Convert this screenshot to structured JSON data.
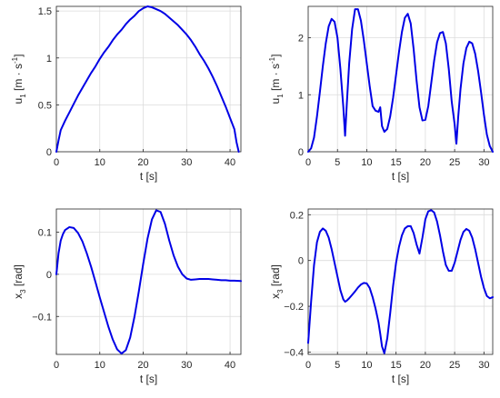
{
  "chart_data": [
    {
      "type": "line",
      "xlabel": "t [s]",
      "ylabel": {
        "main": "u",
        "sub": "1",
        "unit": " [m · s",
        "sup": "-1",
        "close": "]"
      },
      "xlim": [
        0,
        42.5
      ],
      "ylim": [
        0,
        1.55
      ],
      "xticks": [
        0,
        10,
        20,
        30,
        40
      ],
      "yticks": [
        0,
        0.5,
        1,
        1.5
      ],
      "xtick_labels": [
        "0",
        "10",
        "20",
        "30",
        "40"
      ],
      "ytick_labels": [
        "0",
        "0.5",
        "1",
        "1.5"
      ],
      "grid": true,
      "color": "#0000e6",
      "x": [
        0,
        0.5,
        1,
        2,
        3,
        4,
        5,
        6,
        7,
        8,
        9,
        10,
        11,
        12,
        13,
        14,
        15,
        16,
        17,
        18,
        19,
        20,
        21,
        22,
        23,
        24,
        25,
        26,
        27,
        28,
        29,
        30,
        31,
        32,
        33,
        34,
        35,
        36,
        37,
        38,
        39,
        40,
        41,
        41.5,
        42
      ],
      "y": [
        0.0,
        0.12,
        0.23,
        0.33,
        0.42,
        0.51,
        0.6,
        0.68,
        0.76,
        0.84,
        0.91,
        0.99,
        1.06,
        1.12,
        1.19,
        1.25,
        1.3,
        1.36,
        1.41,
        1.45,
        1.5,
        1.53,
        1.55,
        1.54,
        1.52,
        1.5,
        1.47,
        1.43,
        1.39,
        1.35,
        1.3,
        1.25,
        1.19,
        1.12,
        1.04,
        0.97,
        0.89,
        0.8,
        0.7,
        0.59,
        0.48,
        0.36,
        0.24,
        0.1,
        0.0
      ]
    },
    {
      "type": "line",
      "xlabel": "t [s]",
      "ylabel": {
        "main": "u",
        "sub": "1",
        "unit": " [m · s",
        "sup": "-1",
        "close": "]"
      },
      "xlim": [
        0,
        31.5
      ],
      "ylim": [
        0,
        2.55
      ],
      "xticks": [
        0,
        5,
        10,
        15,
        20,
        25,
        30
      ],
      "yticks": [
        0,
        1,
        2
      ],
      "xtick_labels": [
        "0",
        "5",
        "10",
        "15",
        "20",
        "25",
        "30"
      ],
      "ytick_labels": [
        "0",
        "1",
        "2"
      ],
      "grid": true,
      "color": "#0000e6",
      "x": [
        0,
        0.5,
        1,
        1.5,
        2,
        2.5,
        3,
        3.5,
        4,
        4.5,
        5,
        5.5,
        6,
        6.3,
        6.6,
        7,
        7.5,
        8,
        8.5,
        9,
        9.5,
        10,
        10.5,
        11,
        11.5,
        12,
        12.3,
        12.6,
        13,
        13.5,
        14,
        14.5,
        15,
        15.5,
        16,
        16.5,
        17,
        17.5,
        18,
        18.5,
        19,
        19.5,
        20,
        20.5,
        21,
        21.5,
        22,
        22.5,
        23,
        23.5,
        24,
        24.5,
        25,
        25.3,
        25.6,
        26,
        26.5,
        27,
        27.5,
        28,
        28.5,
        29,
        29.5,
        30,
        30.5,
        31,
        31.5
      ],
      "y": [
        0.0,
        0.06,
        0.25,
        0.62,
        1.05,
        1.5,
        1.9,
        2.2,
        2.33,
        2.28,
        2.0,
        1.45,
        0.78,
        0.28,
        0.85,
        1.55,
        2.15,
        2.5,
        2.5,
        2.3,
        1.95,
        1.55,
        1.15,
        0.8,
        0.72,
        0.7,
        0.78,
        0.45,
        0.35,
        0.4,
        0.62,
        0.95,
        1.35,
        1.75,
        2.1,
        2.35,
        2.42,
        2.25,
        1.8,
        1.25,
        0.78,
        0.55,
        0.56,
        0.8,
        1.2,
        1.6,
        1.92,
        2.08,
        2.1,
        1.9,
        1.45,
        0.88,
        0.48,
        0.14,
        0.6,
        1.1,
        1.55,
        1.82,
        1.93,
        1.9,
        1.72,
        1.42,
        1.05,
        0.65,
        0.3,
        0.1,
        0.0
      ]
    },
    {
      "type": "line",
      "xlabel": "t [s]",
      "ylabel": {
        "main": "x",
        "sub": "3",
        "unit": " [rad]",
        "sup": "",
        "close": ""
      },
      "xlim": [
        0,
        42.5
      ],
      "ylim": [
        -0.19,
        0.155
      ],
      "xticks": [
        0,
        10,
        20,
        30,
        40
      ],
      "yticks": [
        -0.1,
        0,
        0.1
      ],
      "xtick_labels": [
        "0",
        "10",
        "20",
        "30",
        "40"
      ],
      "ytick_labels": [
        "−0.1",
        "0",
        "0.1"
      ],
      "grid": true,
      "color": "#0000e6",
      "x": [
        0,
        0.5,
        1,
        1.5,
        2,
        3,
        4,
        5,
        6,
        7,
        8,
        9,
        10,
        11,
        12,
        13,
        14,
        15,
        16,
        17,
        18,
        19,
        20,
        21,
        22,
        23,
        24,
        25,
        26,
        27,
        28,
        29,
        30,
        31,
        32,
        33,
        34,
        35,
        36,
        37,
        38,
        39,
        40,
        41,
        42.5
      ],
      "y": [
        0.0,
        0.05,
        0.08,
        0.095,
        0.105,
        0.112,
        0.11,
        0.098,
        0.078,
        0.05,
        0.018,
        -0.018,
        -0.055,
        -0.09,
        -0.125,
        -0.155,
        -0.178,
        -0.188,
        -0.18,
        -0.15,
        -0.1,
        -0.04,
        0.025,
        0.085,
        0.13,
        0.152,
        0.148,
        0.12,
        0.08,
        0.045,
        0.018,
        0.0,
        -0.01,
        -0.013,
        -0.012,
        -0.011,
        -0.011,
        -0.011,
        -0.012,
        -0.013,
        -0.014,
        -0.014,
        -0.015,
        -0.015,
        -0.016
      ]
    },
    {
      "type": "line",
      "xlabel": "t [s]",
      "ylabel": {
        "main": "x",
        "sub": "3",
        "unit": " [rad]",
        "sup": "",
        "close": ""
      },
      "xlim": [
        0,
        31.5
      ],
      "ylim": [
        -0.41,
        0.225
      ],
      "xticks": [
        0,
        5,
        10,
        15,
        20,
        25,
        30
      ],
      "yticks": [
        -0.4,
        -0.2,
        0,
        0.2
      ],
      "xtick_labels": [
        "0",
        "5",
        "10",
        "15",
        "20",
        "25",
        "30"
      ],
      "ytick_labels": [
        "−0.4",
        "−0.2",
        "0",
        "0.2"
      ],
      "grid": true,
      "color": "#0000e6",
      "x": [
        0,
        0.5,
        1,
        1.5,
        2,
        2.5,
        3,
        3.5,
        4,
        4.5,
        5,
        5.5,
        6,
        6.3,
        6.6,
        7,
        7.5,
        8,
        8.5,
        9,
        9.5,
        10,
        10.5,
        11,
        11.5,
        12,
        12.3,
        12.6,
        13,
        13.5,
        14,
        14.5,
        15,
        15.5,
        16,
        16.5,
        17,
        17.5,
        18,
        18.5,
        19,
        19.5,
        20,
        20.5,
        21,
        21.5,
        22,
        22.5,
        23,
        23.5,
        24,
        24.5,
        25,
        25.5,
        26,
        26.5,
        27,
        27.5,
        28,
        28.5,
        29,
        29.5,
        30,
        30.5,
        31,
        31.5
      ],
      "y": [
        -0.36,
        -0.18,
        -0.02,
        0.08,
        0.125,
        0.14,
        0.13,
        0.1,
        0.05,
        -0.01,
        -0.07,
        -0.13,
        -0.17,
        -0.18,
        -0.175,
        -0.165,
        -0.15,
        -0.135,
        -0.118,
        -0.105,
        -0.098,
        -0.1,
        -0.12,
        -0.16,
        -0.21,
        -0.27,
        -0.32,
        -0.375,
        -0.405,
        -0.34,
        -0.23,
        -0.11,
        -0.01,
        0.06,
        0.11,
        0.14,
        0.15,
        0.15,
        0.12,
        0.07,
        0.03,
        0.1,
        0.18,
        0.215,
        0.22,
        0.21,
        0.17,
        0.11,
        0.04,
        -0.02,
        -0.045,
        -0.045,
        -0.01,
        0.04,
        0.09,
        0.125,
        0.138,
        0.13,
        0.1,
        0.05,
        -0.01,
        -0.07,
        -0.12,
        -0.155,
        -0.165,
        -0.16
      ]
    }
  ]
}
